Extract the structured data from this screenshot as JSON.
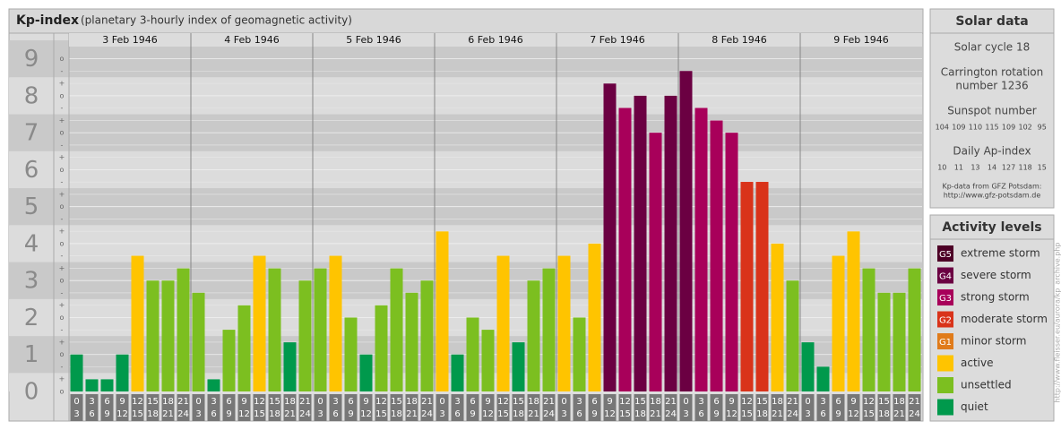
{
  "chart_data": {
    "type": "bar",
    "title": "Kp-index",
    "subtitle": "(planetary 3-hourly index of geomagnetic activity)",
    "ylim": [
      0,
      9.33
    ],
    "yticks": [
      0,
      1,
      2,
      3,
      4,
      5,
      6,
      7,
      8,
      9
    ],
    "subtick_labels": [
      "-",
      "o",
      "+"
    ],
    "hours": [
      [
        0,
        3
      ],
      [
        3,
        6
      ],
      [
        6,
        9
      ],
      [
        9,
        12
      ],
      [
        12,
        15
      ],
      [
        15,
        18
      ],
      [
        18,
        21
      ],
      [
        21,
        24
      ]
    ],
    "days": [
      {
        "date": "3 Feb 1946",
        "values": [
          1,
          0.33,
          0.33,
          1,
          3.67,
          3,
          3,
          3.33
        ],
        "colors": [
          "#00994c",
          "#00994c",
          "#00994c",
          "#00994c",
          "#ffc400",
          "#7cbf20",
          "#7cbf20",
          "#7cbf20"
        ]
      },
      {
        "date": "4 Feb 1946",
        "values": [
          2.67,
          0.33,
          1.67,
          2.33,
          3.67,
          3.33,
          1.33,
          3
        ],
        "colors": [
          "#7cbf20",
          "#00994c",
          "#7cbf20",
          "#7cbf20",
          "#ffc400",
          "#7cbf20",
          "#00994c",
          "#7cbf20"
        ]
      },
      {
        "date": "5 Feb 1946",
        "values": [
          3.33,
          3.67,
          2,
          1,
          2.33,
          3.33,
          2.67,
          3
        ],
        "colors": [
          "#7cbf20",
          "#ffc400",
          "#7cbf20",
          "#00994c",
          "#7cbf20",
          "#7cbf20",
          "#7cbf20",
          "#7cbf20"
        ]
      },
      {
        "date": "6 Feb 1946",
        "values": [
          4.33,
          1,
          2,
          1.67,
          3.67,
          1.33,
          3,
          3.33
        ],
        "colors": [
          "#ffc400",
          "#00994c",
          "#7cbf20",
          "#7cbf20",
          "#ffc400",
          "#00994c",
          "#7cbf20",
          "#7cbf20"
        ]
      },
      {
        "date": "7 Feb 1946",
        "values": [
          3.67,
          2,
          4,
          8.33,
          7.67,
          8,
          7,
          8
        ],
        "colors": [
          "#ffc400",
          "#7cbf20",
          "#ffc400",
          "#6b0042",
          "#a8005a",
          "#6b0042",
          "#a8005a",
          "#6b0042"
        ]
      },
      {
        "date": "8 Feb 1946",
        "values": [
          8.67,
          7.67,
          7.33,
          7,
          5.67,
          5.67,
          4,
          3
        ],
        "colors": [
          "#6b0042",
          "#a8005a",
          "#a8005a",
          "#a8005a",
          "#d9331a",
          "#d9331a",
          "#ffc400",
          "#7cbf20"
        ]
      },
      {
        "date": "9 Feb 1946",
        "values": [
          1.33,
          0.67,
          3.67,
          4.33,
          3.33,
          2.67,
          2.67,
          3.33
        ],
        "colors": [
          "#00994c",
          "#00994c",
          "#ffc400",
          "#ffc400",
          "#7cbf20",
          "#7cbf20",
          "#7cbf20",
          "#7cbf20"
        ]
      }
    ]
  },
  "solar_data": {
    "title": "Solar data",
    "solar_cycle": "Solar cycle 18",
    "carrington": [
      "Carrington rotation",
      "number 1236"
    ],
    "sunspot_title": "Sunspot number",
    "sunspot_values": [
      104,
      109,
      110,
      115,
      109,
      102,
      95
    ],
    "ap_title": "Daily Ap-index",
    "ap_values": [
      10,
      11,
      13,
      14,
      127,
      118,
      15
    ],
    "source": [
      "Kp-data from GFZ Potsdam:",
      "http://www.gfz-potsdam.de"
    ]
  },
  "activity_levels": {
    "title": "Activity levels",
    "items": [
      {
        "code": "G5",
        "label": "extreme storm",
        "color": "#4d0026"
      },
      {
        "code": "G4",
        "label": "severe storm",
        "color": "#6b0042"
      },
      {
        "code": "G3",
        "label": "strong storm",
        "color": "#a8005a"
      },
      {
        "code": "G2",
        "label": "moderate storm",
        "color": "#d9331a"
      },
      {
        "code": "G1",
        "label": "minor storm",
        "color": "#e07b1a"
      },
      {
        "code": null,
        "label": "active",
        "color": "#ffc400"
      },
      {
        "code": null,
        "label": "unsettled",
        "color": "#7cbf20"
      },
      {
        "code": null,
        "label": "quiet",
        "color": "#00994c"
      }
    ]
  },
  "side_url": "http://www.fleisser.eu/aurora/kp_archive.php"
}
